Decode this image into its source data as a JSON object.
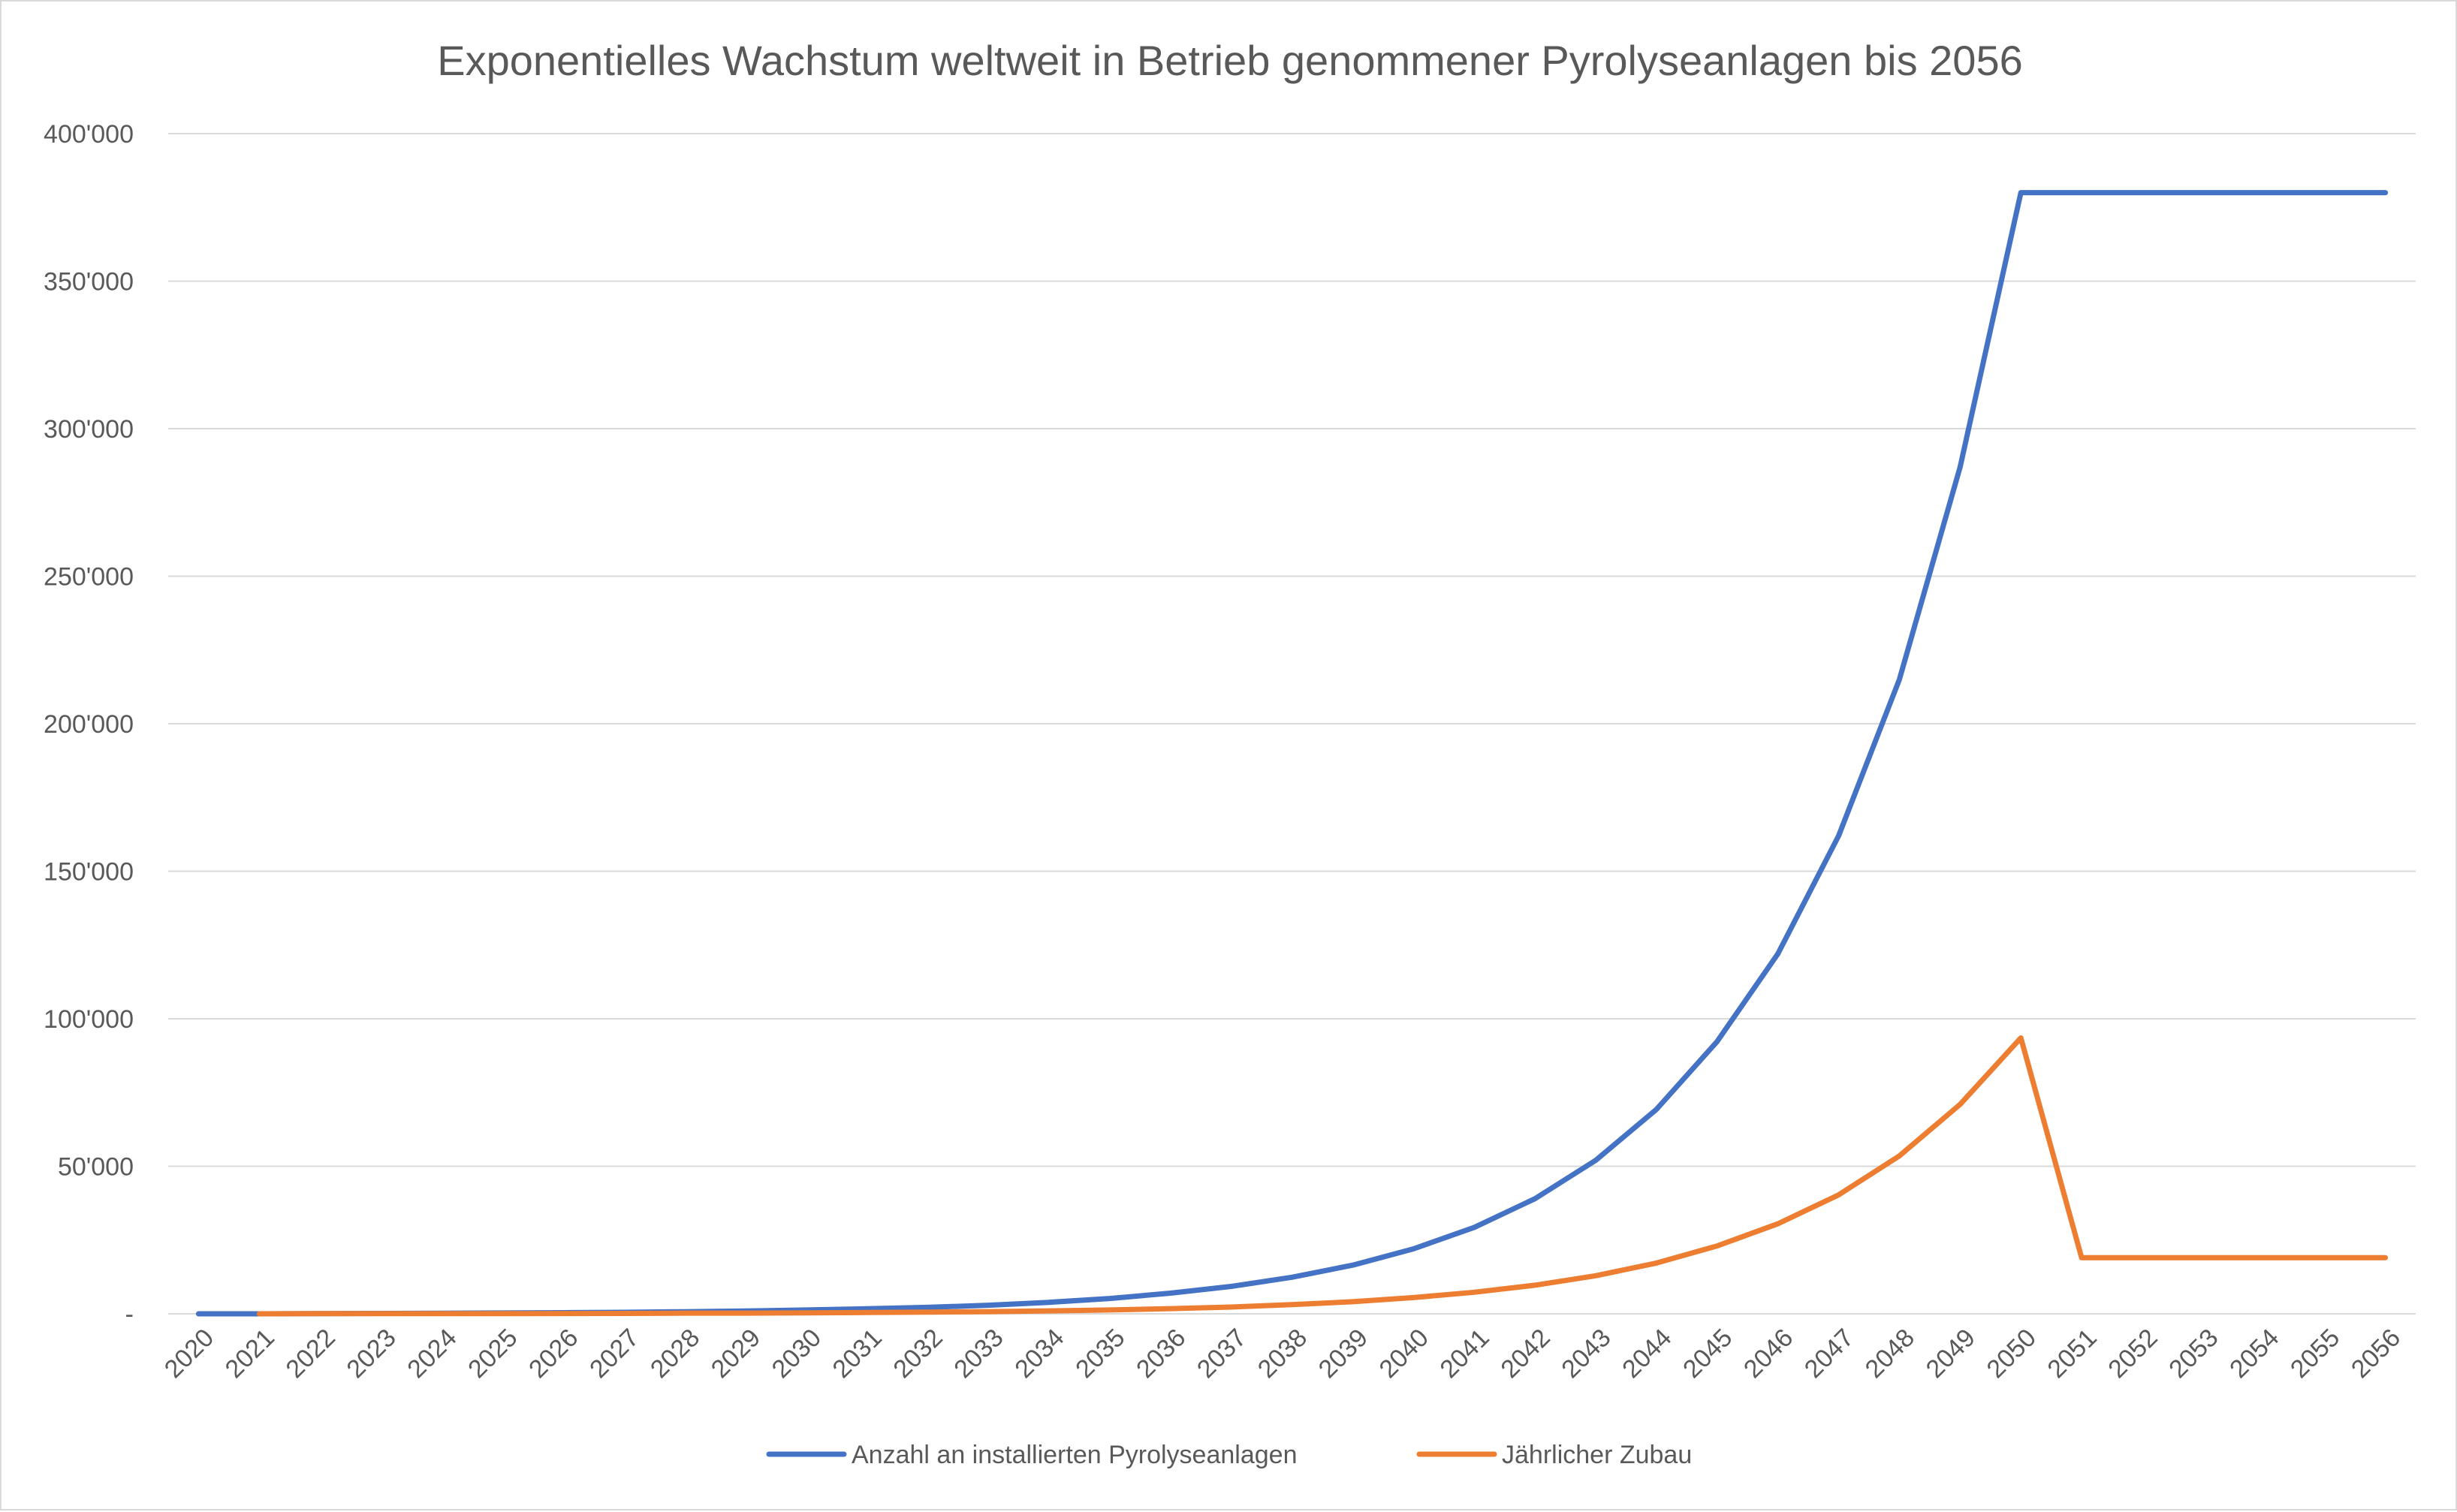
{
  "chart_data": {
    "type": "line",
    "title": "Exponentielles Wachstum weltweit in Betrieb genommener Pyrolyseanlagen bis 2056",
    "xlabel": "",
    "ylabel": "",
    "ylim": [
      0,
      400000
    ],
    "yticks": [
      0,
      50000,
      100000,
      150000,
      200000,
      250000,
      300000,
      350000,
      400000
    ],
    "ytick_labels": [
      "-",
      "50'000",
      "100'000",
      "150'000",
      "200'000",
      "250'000",
      "300'000",
      "350'000",
      "400'000"
    ],
    "grid": true,
    "legend_position": "bottom",
    "categories": [
      "2020",
      "2021",
      "2022",
      "2023",
      "2024",
      "2025",
      "2026",
      "2027",
      "2028",
      "2029",
      "2030",
      "2031",
      "2032",
      "2033",
      "2034",
      "2035",
      "2036",
      "2037",
      "2038",
      "2039",
      "2040",
      "2041",
      "2042",
      "2043",
      "2044",
      "2045",
      "2046",
      "2047",
      "2048",
      "2049",
      "2050",
      "2051",
      "2052",
      "2053",
      "2054",
      "2055",
      "2056"
    ],
    "series": [
      {
        "name": "Anzahl an installierten Pyrolyseanlagen",
        "color": "#4472C4",
        "values": [
          0,
          0,
          50,
          130,
          200,
          280,
          380,
          500,
          720,
          950,
          1300,
          1700,
          2200,
          2900,
          3900,
          5200,
          7000,
          9300,
          12400,
          16500,
          22000,
          29300,
          39000,
          52000,
          69300,
          92300,
          122000,
          162000,
          215000,
          287000,
          380000,
          380000,
          380000,
          380000,
          380000,
          380000,
          380000
        ]
      },
      {
        "name": "Jährlicher Zubau",
        "color": "#ED7D31",
        "start_index": 1,
        "values": [
          null,
          0,
          50,
          80,
          70,
          80,
          100,
          130,
          220,
          240,
          340,
          430,
          560,
          730,
          980,
          1300,
          1750,
          2300,
          3100,
          4100,
          5500,
          7300,
          9700,
          12900,
          17200,
          23000,
          30500,
          40300,
          53500,
          71000,
          93500,
          19000,
          19000,
          19000,
          19000,
          19000,
          19000
        ]
      }
    ]
  }
}
